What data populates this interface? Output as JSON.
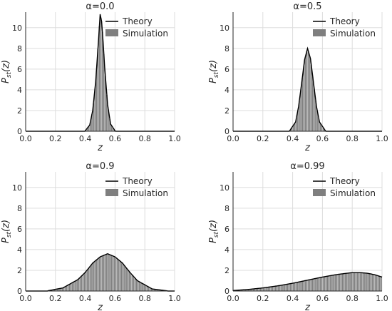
{
  "legend": {
    "theory_label": "Theory",
    "simulation_label": "Simulation"
  },
  "colors": {
    "theory": "#000000",
    "simulation": "#7f7f7f",
    "grid": "#dddddd",
    "axis": "#262626"
  },
  "chart_data": [
    {
      "type": "area",
      "title": "α=0.0",
      "xlabel": "z",
      "ylabel": "P_st(z)",
      "xlim": [
        0,
        1
      ],
      "ylim": [
        0,
        11.5
      ],
      "xticks": [
        "0.0",
        "0.2",
        "0.4",
        "0.6",
        "0.8",
        "1.0"
      ],
      "yticks": [
        "0",
        "2",
        "4",
        "6",
        "8",
        "10"
      ],
      "grid": true,
      "legend_position": "top-right",
      "series": [
        {
          "name": "Theory",
          "kind": "line",
          "x": [
            0.4,
            0.43,
            0.45,
            0.47,
            0.48,
            0.49,
            0.5,
            0.51,
            0.52,
            0.53,
            0.55,
            0.57,
            0.6
          ],
          "y": [
            0.05,
            0.6,
            2.0,
            4.8,
            6.9,
            9.0,
            11.3,
            10.6,
            8.6,
            6.3,
            2.6,
            0.7,
            0.05
          ]
        },
        {
          "name": "Simulation",
          "kind": "histogram",
          "x": [
            0.4,
            0.43,
            0.45,
            0.47,
            0.48,
            0.49,
            0.5,
            0.51,
            0.52,
            0.53,
            0.55,
            0.57,
            0.6
          ],
          "y": [
            0.05,
            0.6,
            2.0,
            4.8,
            6.9,
            9.0,
            11.3,
            10.6,
            8.6,
            6.3,
            2.6,
            0.7,
            0.05
          ]
        }
      ]
    },
    {
      "type": "area",
      "title": "α=0.5",
      "xlabel": "z",
      "ylabel": "P_st(z)",
      "xlim": [
        0,
        1
      ],
      "ylim": [
        0,
        11.5
      ],
      "xticks": [
        "0.0",
        "0.2",
        "0.4",
        "0.6",
        "0.8",
        "1.0"
      ],
      "yticks": [
        "0",
        "2",
        "4",
        "6",
        "8",
        "10"
      ],
      "grid": true,
      "legend_position": "top-right",
      "series": [
        {
          "name": "Theory",
          "kind": "line",
          "x": [
            0.38,
            0.42,
            0.44,
            0.46,
            0.48,
            0.5,
            0.52,
            0.54,
            0.56,
            0.58,
            0.62
          ],
          "y": [
            0.05,
            0.9,
            2.4,
            4.6,
            6.9,
            8.0,
            7.0,
            4.7,
            2.4,
            0.9,
            0.05
          ]
        },
        {
          "name": "Simulation",
          "kind": "histogram",
          "x": [
            0.38,
            0.42,
            0.44,
            0.46,
            0.48,
            0.5,
            0.52,
            0.54,
            0.56,
            0.58,
            0.62
          ],
          "y": [
            0.05,
            0.9,
            2.4,
            4.6,
            6.9,
            8.0,
            7.0,
            4.7,
            2.4,
            0.9,
            0.05
          ]
        }
      ]
    },
    {
      "type": "area",
      "title": "α=0.9",
      "xlabel": "z",
      "ylabel": "P_st(z)",
      "xlim": [
        0,
        1
      ],
      "ylim": [
        0,
        11.5
      ],
      "xticks": [
        "0.0",
        "0.2",
        "0.4",
        "0.6",
        "0.8",
        "1.0"
      ],
      "yticks": [
        "0",
        "2",
        "4",
        "6",
        "8",
        "10"
      ],
      "grid": true,
      "legend_position": "top-right",
      "series": [
        {
          "name": "Theory",
          "kind": "line",
          "x": [
            0.15,
            0.25,
            0.35,
            0.4,
            0.45,
            0.5,
            0.55,
            0.6,
            0.65,
            0.7,
            0.75,
            0.85,
            0.95
          ],
          "y": [
            0.03,
            0.3,
            1.1,
            1.8,
            2.7,
            3.3,
            3.6,
            3.3,
            2.7,
            1.8,
            1.0,
            0.2,
            0.02
          ]
        },
        {
          "name": "Simulation",
          "kind": "histogram",
          "x": [
            0.15,
            0.25,
            0.35,
            0.4,
            0.45,
            0.5,
            0.55,
            0.6,
            0.65,
            0.7,
            0.75,
            0.85,
            0.95
          ],
          "y": [
            0.03,
            0.3,
            1.1,
            1.8,
            2.7,
            3.3,
            3.6,
            3.3,
            2.7,
            1.8,
            1.0,
            0.2,
            0.02
          ]
        }
      ]
    },
    {
      "type": "area",
      "title": "α=0.99",
      "xlabel": "z",
      "ylabel": "P_st(z)",
      "xlim": [
        0,
        1
      ],
      "ylim": [
        0,
        11.5
      ],
      "xticks": [
        "0.0",
        "0.2",
        "0.4",
        "0.6",
        "0.8",
        "1.0"
      ],
      "yticks": [
        "0",
        "2",
        "4",
        "6",
        "8",
        "10"
      ],
      "grid": true,
      "legend_position": "top-right",
      "series": [
        {
          "name": "Theory",
          "kind": "line",
          "x": [
            0.0,
            0.1,
            0.2,
            0.3,
            0.4,
            0.5,
            0.6,
            0.7,
            0.8,
            0.85,
            0.9,
            0.95,
            1.0
          ],
          "y": [
            0.05,
            0.15,
            0.3,
            0.5,
            0.75,
            1.05,
            1.35,
            1.6,
            1.78,
            1.78,
            1.72,
            1.58,
            1.35
          ]
        },
        {
          "name": "Simulation",
          "kind": "histogram",
          "x": [
            0.0,
            0.1,
            0.2,
            0.3,
            0.4,
            0.5,
            0.6,
            0.7,
            0.8,
            0.85,
            0.9,
            0.95,
            1.0
          ],
          "y": [
            0.05,
            0.15,
            0.3,
            0.5,
            0.75,
            1.05,
            1.35,
            1.6,
            1.78,
            1.78,
            1.72,
            1.58,
            1.35
          ]
        }
      ]
    }
  ]
}
